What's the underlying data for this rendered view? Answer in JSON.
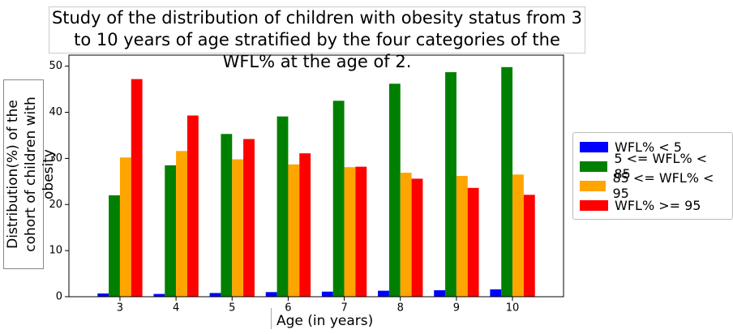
{
  "chart_data": {
    "type": "bar",
    "title": "Study of the distribution of children with obesity status from 3 to 10 years of age stratified by the four categories of the WFL% at the age of 2.",
    "x_label": "Age (in years)",
    "y_label": "Distribution(%) of the cohort of children with obesity",
    "x": [
      3,
      4,
      5,
      6,
      7,
      8,
      9,
      10
    ],
    "xlim": [
      2.09,
      10.91
    ],
    "ylim": [
      0,
      52.4
    ],
    "yticks": [
      0,
      10,
      20,
      30,
      40,
      50
    ],
    "grid": false,
    "legend": "right",
    "series": [
      {
        "name": "WFL% < 5",
        "color": "#0000ff",
        "values": [
          0.7,
          0.6,
          0.8,
          1.0,
          1.1,
          1.3,
          1.4,
          1.6
        ]
      },
      {
        "name": "5 <= WFL% < 85",
        "color": "#008000",
        "values": [
          22.0,
          28.5,
          35.3,
          39.1,
          42.5,
          46.2,
          48.7,
          49.8
        ]
      },
      {
        "name": "85 <= WFL% < 95",
        "color": "#ffa500",
        "values": [
          30.2,
          31.6,
          29.8,
          28.7,
          28.1,
          26.9,
          26.2,
          26.5
        ]
      },
      {
        "name": "WFL% >= 95",
        "color": "#ff0000",
        "values": [
          47.2,
          39.3,
          34.2,
          31.1,
          28.2,
          25.6,
          23.6,
          22.1
        ]
      }
    ]
  }
}
